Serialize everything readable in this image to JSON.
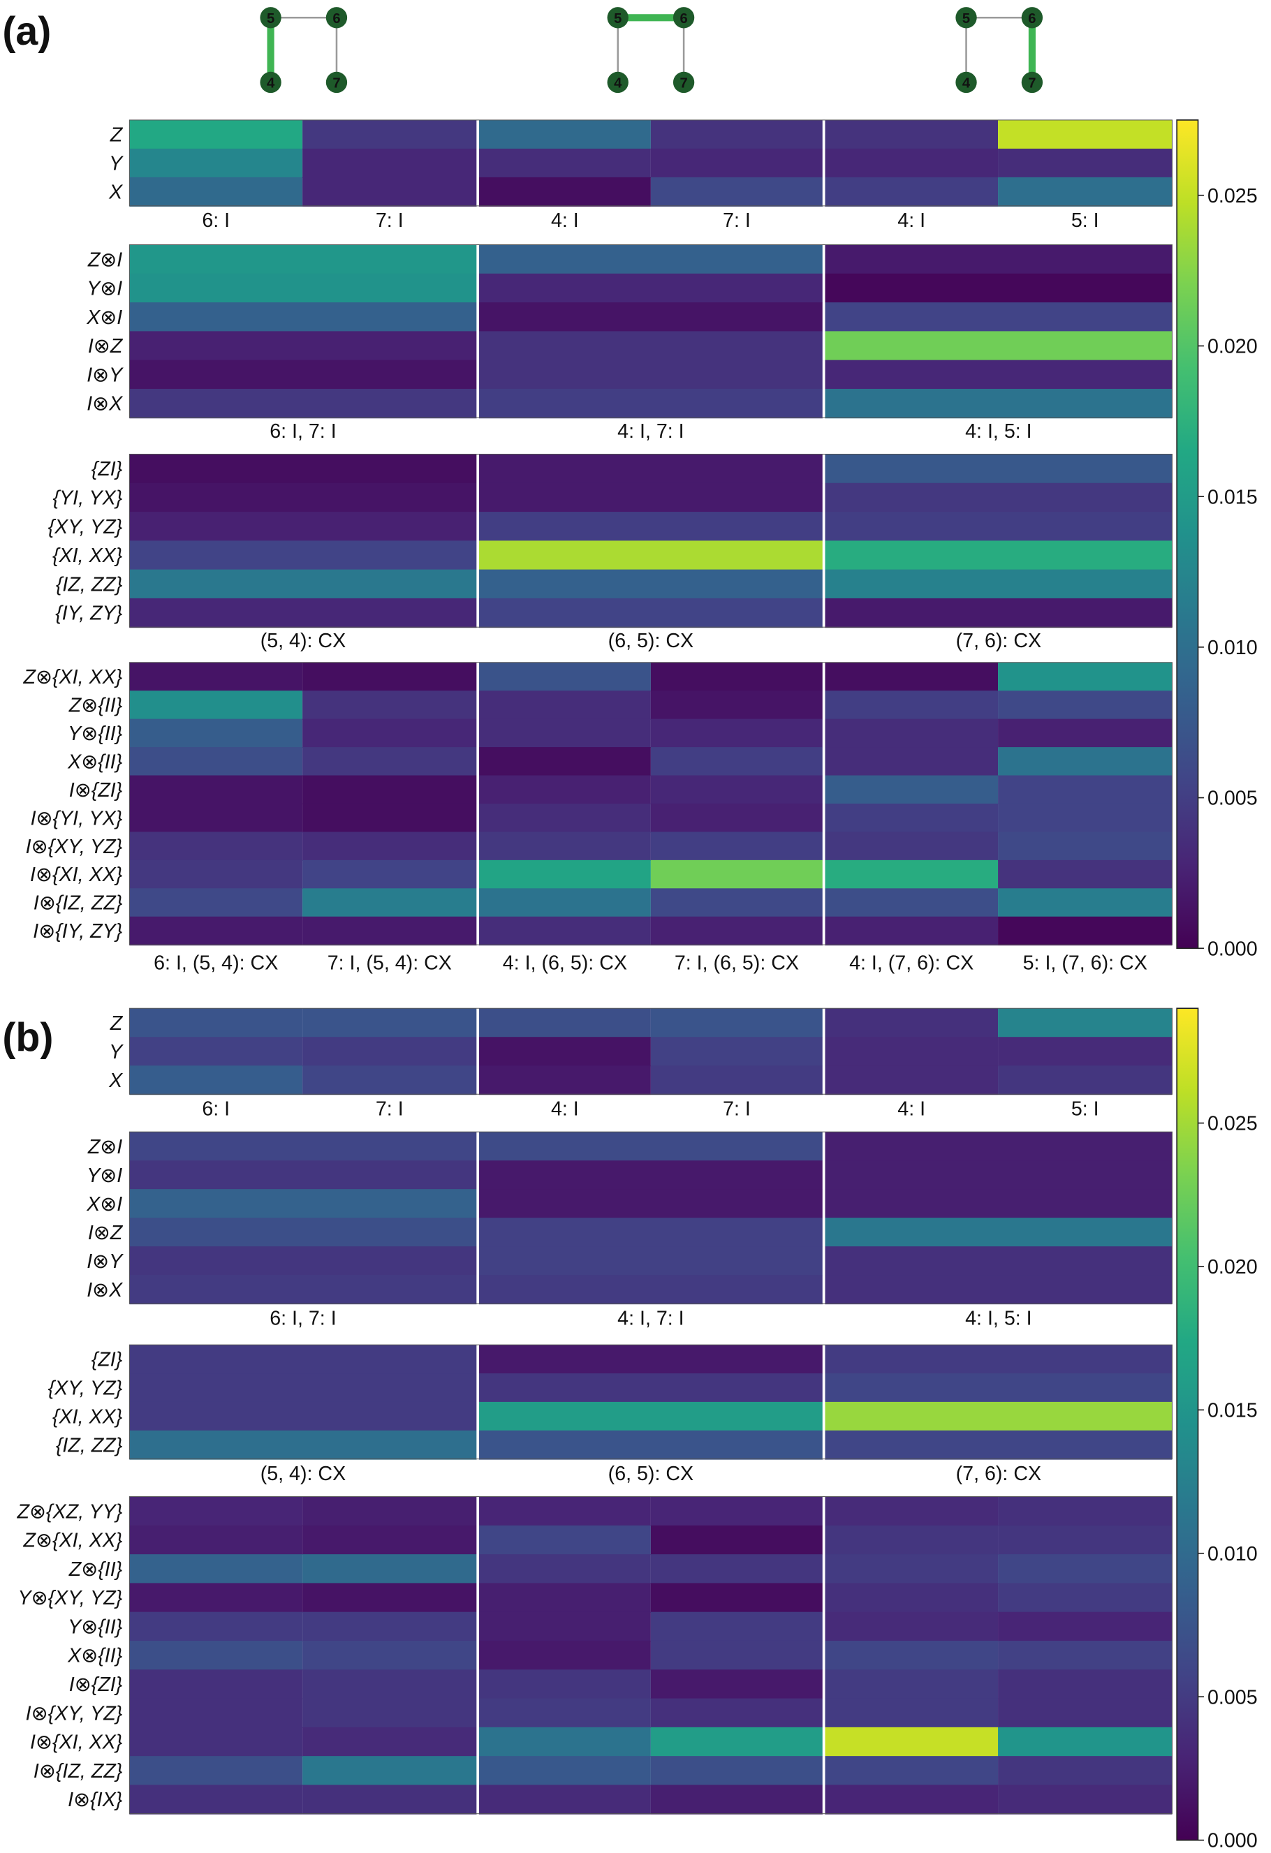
{
  "panels": [
    {
      "label": "(a)",
      "colorbar_ticks": [
        "0.000",
        "0.005",
        "0.010",
        "0.015",
        "0.020",
        "0.025"
      ],
      "colorbar_max": 0.0275,
      "topology": [
        {
          "nodes": [
            "5",
            "6",
            "4",
            "7"
          ],
          "highlight": "5-4"
        },
        {
          "nodes": [
            "5",
            "6",
            "4",
            "7"
          ],
          "highlight": "5-6"
        },
        {
          "nodes": [
            "5",
            "6",
            "4",
            "7"
          ],
          "highlight": "6-7"
        }
      ],
      "groups": [
        {
          "rows": [
            "Z",
            "Y",
            "X"
          ],
          "titles": [
            "6: I",
            "7: I",
            "4: I",
            "7: I",
            "4: I",
            "5: I"
          ],
          "values": [
            [
              0.0165,
              0.0045,
              0.0095,
              0.004,
              0.004,
              0.025
            ],
            [
              0.0125,
              0.003,
              0.0035,
              0.003,
              0.003,
              0.0035
            ],
            [
              0.0095,
              0.003,
              0.001,
              0.006,
              0.005,
              0.01
            ]
          ]
        },
        {
          "rows": [
            "Z⊗I",
            "Y⊗I",
            "X⊗I",
            "I⊗Z",
            "I⊗Y",
            "I⊗X"
          ],
          "titles": [
            "6: I, 7: I",
            "4: I, 7: I",
            "4: I, 5: I"
          ],
          "values": [
            [
              0.0145,
              0.0085,
              0.002
            ],
            [
              0.014,
              0.003,
              0.0005
            ],
            [
              0.0085,
              0.0015,
              0.0055
            ],
            [
              0.0025,
              0.004,
              0.0215
            ],
            [
              0.0015,
              0.004,
              0.003
            ],
            [
              0.0045,
              0.005,
              0.0105
            ]
          ]
        },
        {
          "rows": [
            "{ZI}",
            "{YI, YX}",
            "{XY, YZ}",
            "{XI, XX}",
            "{IZ, ZZ}",
            "{IY, ZY}"
          ],
          "titles": [
            "(5, 4): CX",
            "(6, 5): CX",
            "(7, 6): CX"
          ],
          "values": [
            [
              0.001,
              0.002,
              0.0075
            ],
            [
              0.0015,
              0.002,
              0.0045
            ],
            [
              0.0025,
              0.005,
              0.005
            ],
            [
              0.0055,
              0.024,
              0.017
            ],
            [
              0.011,
              0.0085,
              0.012
            ],
            [
              0.003,
              0.0055,
              0.002
            ]
          ]
        },
        {
          "rows": [
            "Z⊗{XI, XX}",
            "Z⊗{II}",
            "Y⊗{II}",
            "X⊗{II}",
            "I⊗{ZI}",
            "I⊗{YI, YX}",
            "I⊗{XY, YZ}",
            "I⊗{XI, XX}",
            "I⊗{IZ, ZZ}",
            "I⊗{IY, ZY}"
          ],
          "titles": [
            "6: I, (5, 4): CX",
            "7: I, (5, 4): CX",
            "4: I, (6, 5): CX",
            "7: I, (6, 5): CX",
            "4: I, (7, 6): CX",
            "5: I, (7, 6): CX"
          ],
          "values": [
            [
              0.0015,
              0.001,
              0.007,
              0.001,
              0.001,
              0.014
            ],
            [
              0.0135,
              0.004,
              0.0035,
              0.0015,
              0.005,
              0.006
            ],
            [
              0.008,
              0.003,
              0.0035,
              0.003,
              0.0035,
              0.0025
            ],
            [
              0.0065,
              0.0045,
              0.001,
              0.005,
              0.0035,
              0.0105
            ],
            [
              0.0015,
              0.001,
              0.0025,
              0.003,
              0.008,
              0.0055
            ],
            [
              0.0015,
              0.001,
              0.0035,
              0.0025,
              0.005,
              0.0055
            ],
            [
              0.004,
              0.0035,
              0.0045,
              0.005,
              0.0045,
              0.006
            ],
            [
              0.0045,
              0.0055,
              0.016,
              0.0215,
              0.017,
              0.004
            ],
            [
              0.006,
              0.0115,
              0.0105,
              0.006,
              0.0065,
              0.0115
            ],
            [
              0.002,
              0.002,
              0.0035,
              0.0025,
              0.0025,
              0.0005
            ]
          ]
        }
      ]
    },
    {
      "label": "(b)",
      "colorbar_ticks": [
        "0.000",
        "0.005",
        "0.010",
        "0.015",
        "0.020",
        "0.025"
      ],
      "colorbar_max": 0.029,
      "topology": [],
      "groups": [
        {
          "rows": [
            "Z",
            "Y",
            "X"
          ],
          "titles": [
            "6: I",
            "7: I",
            "4: I",
            "7: I",
            "4: I",
            "5: I"
          ],
          "values": [
            [
              0.0075,
              0.0075,
              0.007,
              0.0075,
              0.004,
              0.013
            ],
            [
              0.0055,
              0.005,
              0.0015,
              0.0055,
              0.0035,
              0.0035
            ],
            [
              0.0085,
              0.006,
              0.002,
              0.005,
              0.0035,
              0.0045
            ]
          ]
        },
        {
          "rows": [
            "Z⊗I",
            "Y⊗I",
            "X⊗I",
            "I⊗Z",
            "I⊗Y",
            "I⊗X"
          ],
          "titles": [
            "6: I, 7: I",
            "4: I, 7: I",
            "4: I, 5: I"
          ],
          "values": [
            [
              0.006,
              0.0065,
              0.0025
            ],
            [
              0.0045,
              0.002,
              0.0025
            ],
            [
              0.009,
              0.002,
              0.0025
            ],
            [
              0.007,
              0.0055,
              0.0115
            ],
            [
              0.0045,
              0.0055,
              0.004
            ],
            [
              0.005,
              0.005,
              0.004
            ]
          ]
        },
        {
          "rows": [
            "{ZI}",
            "{XY, YZ}",
            "{XI, XX}",
            "{IZ, ZZ}"
          ],
          "titles": [
            "(5, 4): CX",
            "(6, 5): CX",
            "(7, 6): CX"
          ],
          "values": [
            [
              0.005,
              0.002,
              0.005
            ],
            [
              0.005,
              0.0045,
              0.006
            ],
            [
              0.005,
              0.016,
              0.0245
            ],
            [
              0.0105,
              0.0075,
              0.006
            ]
          ]
        },
        {
          "rows": [
            "Z⊗{XZ, YY}",
            "Z⊗{XI, XX}",
            "Z⊗{II}",
            "Y⊗{XY, YZ}",
            "Y⊗{II}",
            "X⊗{II}",
            "I⊗{ZI}",
            "I⊗{XY, YZ}",
            "I⊗{XI, XX}",
            "I⊗{IZ, ZZ}",
            "I⊗{IX}"
          ],
          "titles": [
            "6: I, (5, 4): CX",
            "7: I, (5, 4): CX",
            "4: I, (6, 5): CX",
            "7: I, (6, 5): CX",
            "4: I, (7, 6): CX",
            "5: I, (7, 6): CX"
          ],
          "values": [
            [
              0.003,
              0.0025,
              0.003,
              0.003,
              0.0035,
              0.004
            ],
            [
              0.0025,
              0.002,
              0.006,
              0.001,
              0.0045,
              0.0045
            ],
            [
              0.009,
              0.01,
              0.0045,
              0.0045,
              0.005,
              0.006
            ],
            [
              0.002,
              0.0015,
              0.0025,
              0.001,
              0.004,
              0.005
            ],
            [
              0.005,
              0.005,
              0.0025,
              0.005,
              0.0035,
              0.003
            ],
            [
              0.007,
              0.006,
              0.002,
              0.005,
              0.006,
              0.0055
            ],
            [
              0.004,
              0.0045,
              0.0045,
              0.002,
              0.005,
              0.004
            ],
            [
              0.004,
              0.0045,
              0.005,
              0.004,
              0.005,
              0.004
            ],
            [
              0.004,
              0.0035,
              0.011,
              0.016,
              0.0265,
              0.015
            ],
            [
              0.007,
              0.0115,
              0.008,
              0.007,
              0.006,
              0.0045
            ],
            [
              0.004,
              0.004,
              0.0035,
              0.0025,
              0.003,
              0.0035
            ]
          ]
        }
      ]
    }
  ],
  "chart_data": [
    {
      "type": "heatmap",
      "title": "(a)",
      "colorbar": {
        "min": 0.0,
        "max": 0.0275,
        "colormap": "viridis",
        "ticks": [
          0.0,
          0.005,
          0.01,
          0.015,
          0.02,
          0.025
        ]
      },
      "subplots": [
        {
          "rows": [
            "Z",
            "Y",
            "X"
          ],
          "columns": [
            "6: I",
            "7: I",
            "4: I",
            "7: I",
            "4: I",
            "5: I"
          ]
        },
        {
          "rows": [
            "Z⊗I",
            "Y⊗I",
            "X⊗I",
            "I⊗Z",
            "I⊗Y",
            "I⊗X"
          ],
          "columns": [
            "6: I, 7: I",
            "4: I, 7: I",
            "4: I, 5: I"
          ]
        },
        {
          "rows": [
            "{ZI}",
            "{YI, YX}",
            "{XY, YZ}",
            "{XI, XX}",
            "{IZ, ZZ}",
            "{IY, ZY}"
          ],
          "columns": [
            "(5, 4): CX",
            "(6, 5): CX",
            "(7, 6): CX"
          ]
        },
        {
          "rows": [
            "Z⊗{XI, XX}",
            "Z⊗{II}",
            "Y⊗{II}",
            "X⊗{II}",
            "I⊗{ZI}",
            "I⊗{YI, YX}",
            "I⊗{XY, YZ}",
            "I⊗{XI, XX}",
            "I⊗{IZ, ZZ}",
            "I⊗{IY, ZY}"
          ],
          "columns": [
            "6: I, (5, 4): CX",
            "7: I, (5, 4): CX",
            "4: I, (6, 5): CX",
            "7: I, (6, 5): CX",
            "4: I, (7, 6): CX",
            "5: I, (7, 6): CX"
          ]
        }
      ]
    },
    {
      "type": "heatmap",
      "title": "(b)",
      "colorbar": {
        "min": 0.0,
        "max": 0.029,
        "colormap": "viridis",
        "ticks": [
          0.0,
          0.005,
          0.01,
          0.015,
          0.02,
          0.025
        ]
      },
      "subplots": [
        {
          "rows": [
            "Z",
            "Y",
            "X"
          ],
          "columns": [
            "6: I",
            "7: I",
            "4: I",
            "7: I",
            "4: I",
            "5: I"
          ]
        },
        {
          "rows": [
            "Z⊗I",
            "Y⊗I",
            "X⊗I",
            "I⊗Z",
            "I⊗Y",
            "I⊗X"
          ],
          "columns": [
            "6: I, 7: I",
            "4: I, 7: I",
            "4: I, 5: I"
          ]
        },
        {
          "rows": [
            "{ZI}",
            "{XY, YZ}",
            "{XI, XX}",
            "{IZ, ZZ}"
          ],
          "columns": [
            "(5, 4): CX",
            "(6, 5): CX",
            "(7, 6): CX"
          ]
        },
        {
          "rows": [
            "Z⊗{XZ, YY}",
            "Z⊗{XI, XX}",
            "Z⊗{II}",
            "Y⊗{XY, YZ}",
            "Y⊗{II}",
            "X⊗{II}",
            "I⊗{ZI}",
            "I⊗{XY, YZ}",
            "I⊗{XI, XX}",
            "I⊗{IZ, ZZ}",
            "I⊗{IX}"
          ],
          "columns": [
            "6: I, (5, 4): CX",
            "7: I, (5, 4): CX",
            "4: I, (6, 5): CX",
            "7: I, (6, 5): CX",
            "4: I, (7, 6): CX",
            "5: I, (7, 6): CX"
          ]
        }
      ]
    }
  ]
}
